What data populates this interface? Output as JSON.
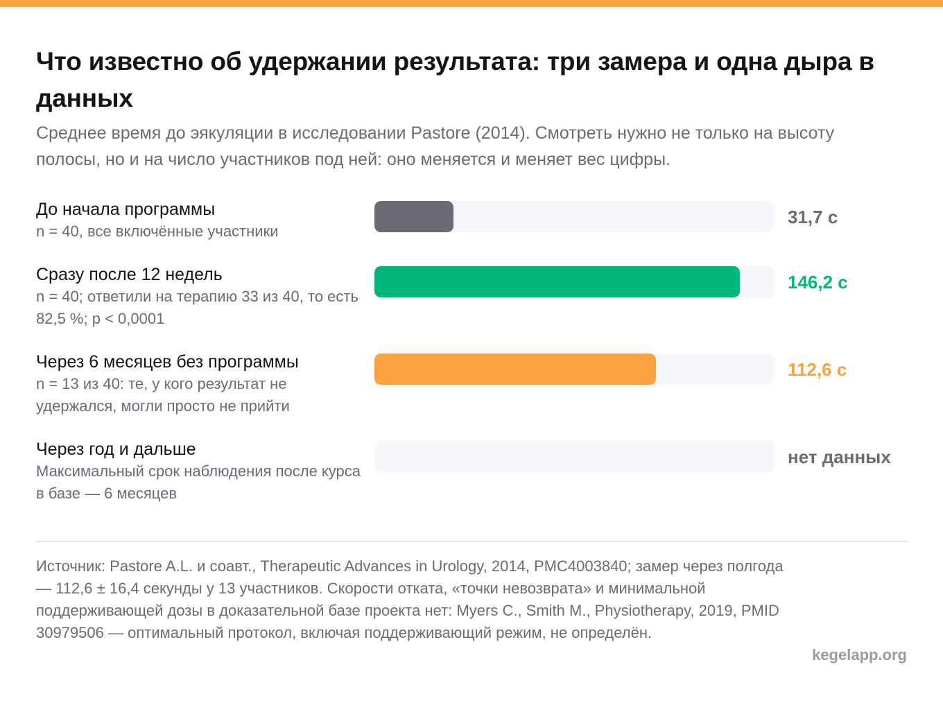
{
  "colors": {
    "accent_top": "#f9a23f",
    "gray": "#6b6b76",
    "green": "#00b67a",
    "orange": "#f9a23f",
    "track": "#f6f7fa"
  },
  "header": {
    "title": "Что известно об удержании результата: три замера и одна дыра в данных",
    "subtitle": "Среднее время до эякуляции в исследовании Pastore (2014). Смотреть нужно не только на высоту полосы, но и на число участников под ней: оно меняется и меняет вес цифры."
  },
  "chart_data": {
    "type": "bar",
    "orientation": "horizontal",
    "title": "Что известно об удержании результата: три замера и одна дыра в данных",
    "subtitle": "Среднее время до эякуляции в исследовании Pastore (2014). Смотреть нужно не только на высоту полосы, но и на число участников под ней: оно меняется и меняет вес цифры.",
    "xlim": [
      0,
      160
    ],
    "unit": "с",
    "categories": [
      "До начала программы",
      "Сразу после 12 недель",
      "Через 6 месяцев без программы",
      "Через год и дальше"
    ],
    "values": [
      31.7,
      146.2,
      112.6,
      null
    ],
    "rows": [
      {
        "label": "До начала программы",
        "note": "n = 40, все включённые участники",
        "value": 31.7,
        "value_text": "31,7 с",
        "color": "#6b6b76"
      },
      {
        "label": "Сразу после 12 недель",
        "note": "n = 40; ответили на терапию 33 из 40, то есть 82,5 %; p < 0,0001",
        "value": 146.2,
        "value_text": "146,2 с",
        "color": "#00b67a"
      },
      {
        "label": "Через 6 месяцев без программы",
        "note": "n = 13 из 40: те, у кого результат не удержался, могли просто не прийти",
        "value": 112.6,
        "value_text": "112,6 с",
        "color": "#f9a23f"
      },
      {
        "label": "Через год и дальше",
        "note": "Максимальный срок наблюдения после курса в базе — 6 месяцев",
        "value": null,
        "value_text": "нет данных",
        "color": "#6b6b76"
      }
    ]
  },
  "footer": {
    "source": "Источник: Pastore A.L. и соавт., Therapeutic Advances in Urology, 2014, PMC4003840; замер через полгода — 112,6 ± 16,4 секунды у 13 участников. Скорости отката, «точки невозврата» и минимальной поддерживающей дозы в доказательной базе проекта нет: Myers C., Smith M., Physiotherapy, 2019, PMID 30979506 — оптимальный протокол, включая поддерживающий режим, не определён.",
    "brand": "kegelapp.org"
  }
}
